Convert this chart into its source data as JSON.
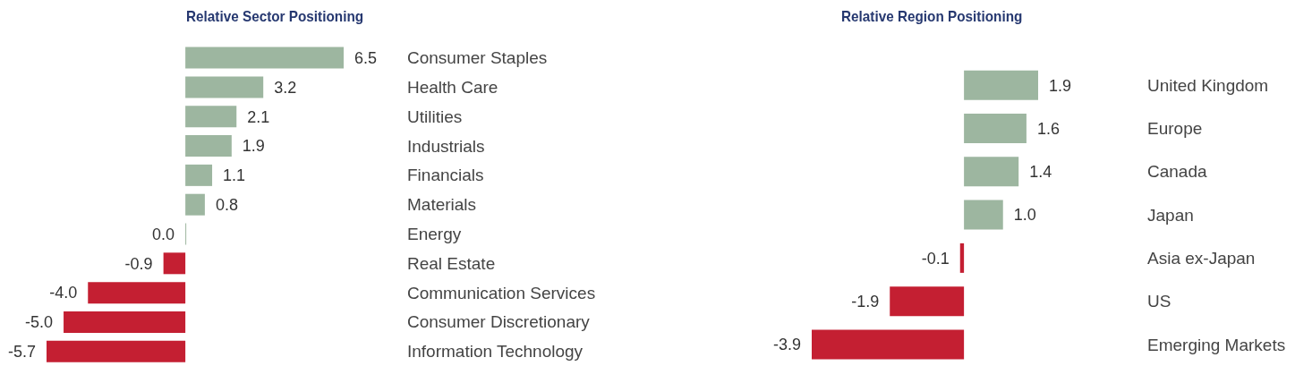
{
  "chart_data": [
    {
      "type": "bar",
      "orientation": "horizontal",
      "title": "Relative Sector Positioning",
      "categories": [
        "Consumer Staples",
        "Health Care",
        "Utilities",
        "Industrials",
        "Financials",
        "Materials",
        "Energy",
        "Real Estate",
        "Communication Services",
        "Consumer Discretionary",
        "Information Technology"
      ],
      "values": [
        6.5,
        3.2,
        2.1,
        1.9,
        1.1,
        0.8,
        0.0,
        -0.9,
        -4.0,
        -5.0,
        -5.7
      ],
      "value_labels": [
        "6.5",
        "3.2",
        "2.1",
        "1.9",
        "1.1",
        "0.8",
        "0.0",
        "-0.9",
        "-4.0",
        "-5.0",
        "-5.7"
      ],
      "colors": [
        "#9db6a0",
        "#9db6a0",
        "#9db6a0",
        "#9db6a0",
        "#9db6a0",
        "#9db6a0",
        "#9db6a0",
        "#c41f32",
        "#c41f32",
        "#c41f32",
        "#c41f32"
      ],
      "legend": false,
      "grid": false
    },
    {
      "type": "bar",
      "orientation": "horizontal",
      "title": "Relative Region Positioning",
      "categories": [
        "United Kingdom",
        "Europe",
        "Canada",
        "Japan",
        "Asia ex-Japan",
        "US",
        "Emerging Markets"
      ],
      "values": [
        1.9,
        1.6,
        1.4,
        1.0,
        -0.1,
        -1.9,
        -3.9
      ],
      "value_labels": [
        "1.9",
        "1.6",
        "1.4",
        "1.0",
        "-0.1",
        "-1.9",
        "-3.9"
      ],
      "colors": [
        "#9db6a0",
        "#9db6a0",
        "#9db6a0",
        "#9db6a0",
        "#c41f32",
        "#c41f32",
        "#c41f32"
      ],
      "legend": false,
      "grid": false
    }
  ]
}
